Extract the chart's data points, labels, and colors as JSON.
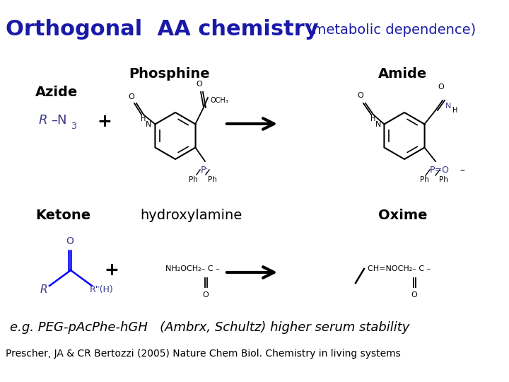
{
  "title_main": "Orthogonal  AA chemistry",
  "title_sub": "(metabolic dependence)",
  "title_color": "#1a1aaa",
  "bg_color": "#ffffff",
  "title_fontsize": 22,
  "title_sub_fontsize": 14,
  "label_azide": "Azide",
  "label_phosphine": "Phosphine",
  "label_amide": "Amide",
  "label_ketone": "Ketone",
  "label_hydroxylamine": "hydroxylamine",
  "label_oxime": "Oxime",
  "eg_text": "e.g. PEG-pAcPhe-hGH   (Ambrx, Schultz) higher serum stability",
  "ref_text": "Prescher, JA & CR Bertozzi (2005) Nature Chem Biol. Chemistry in living systems",
  "eg_fontsize": 13,
  "ref_fontsize": 10
}
